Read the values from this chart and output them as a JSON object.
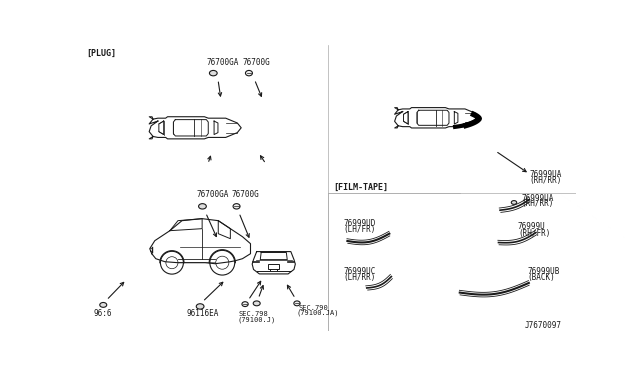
{
  "bg_color": "#ffffff",
  "line_color": "#1a1a1a",
  "gray_color": "#888888",
  "diagram_id": "J7670097",
  "labels": {
    "plug": "[PLUG]",
    "film_tape": "[FILM-TAPE]",
    "part_76700GA": "76700GA",
    "part_76700G": "76700G",
    "part_96116EA": "96116EA",
    "part_9616": "96:6",
    "sec798": "SEC.798",
    "sec798b": "(79100.J)",
    "sec790": "SEC.790",
    "sec790b": "(79100.JA)",
    "part_76999UA": "76999UA",
    "part_76999UA_sub": "(RH/RR)",
    "part_76999U": "76999U",
    "part_76999U_sub": "(RH/FR)",
    "part_76999UD": "76999UD",
    "part_76999UD_sub": "(LH/FR)",
    "part_76999UC": "76999UC",
    "part_76999UC_sub": "(LH/RR)",
    "part_76999UB": "76999UB",
    "part_76999UB_sub": "(BACK)"
  },
  "text_size": 5.5,
  "label_size": 6.0
}
